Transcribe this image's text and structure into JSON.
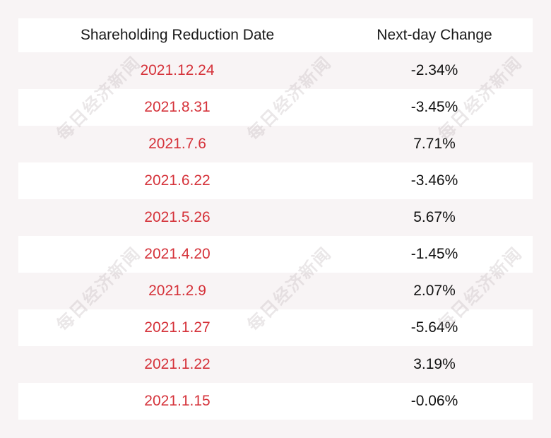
{
  "watermark": "每日经济新闻",
  "colors": {
    "date_text": "#d5323a",
    "value_text": "#111111",
    "background": "#f8f4f5",
    "row_alt": "#ffffff"
  },
  "chart_data": {
    "type": "table",
    "columns": [
      "Shareholding Reduction Date",
      "Next-day Change"
    ],
    "rows": [
      [
        "2021.12.24",
        "-2.34%"
      ],
      [
        "2021.8.31",
        "-3.45%"
      ],
      [
        "2021.7.6",
        "7.71%"
      ],
      [
        "2021.6.22",
        "-3.46%"
      ],
      [
        "2021.5.26",
        "5.67%"
      ],
      [
        "2021.4.20",
        "-1.45%"
      ],
      [
        "2021.2.9",
        "2.07%"
      ],
      [
        "2021.1.27",
        "-5.64%"
      ],
      [
        "2021.1.22",
        "3.19%"
      ],
      [
        "2021.1.15",
        "-0.06%"
      ]
    ]
  }
}
